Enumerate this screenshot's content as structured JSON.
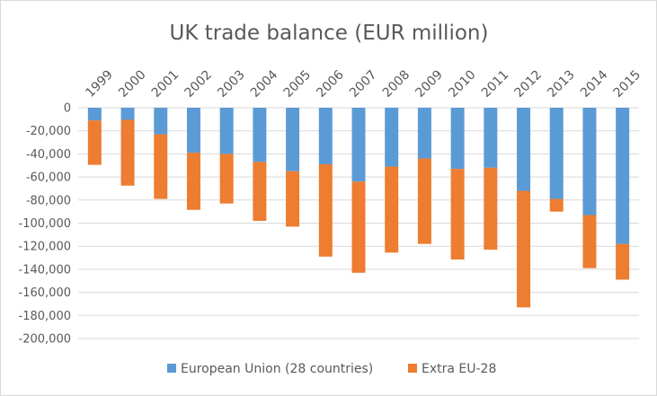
{
  "chart_data": {
    "type": "bar",
    "stacked": true,
    "title": "UK trade balance (EUR million)",
    "xlabel": "",
    "ylabel": "",
    "categories": [
      "1999",
      "2000",
      "2001",
      "2002",
      "2003",
      "2004",
      "2005",
      "2006",
      "2007",
      "2008",
      "2009",
      "2010",
      "2011",
      "2012",
      "2013",
      "2014",
      "2015"
    ],
    "series": [
      {
        "name": "European Union (28 countries)",
        "color": "#5b9bd5",
        "values": [
          -11000,
          -10500,
          -23000,
          -39000,
          -40000,
          -47000,
          -55000,
          -49000,
          -64000,
          -51000,
          -44000,
          -53000,
          -52000,
          -72000,
          -79000,
          -93000,
          -118000
        ]
      },
      {
        "name": "Extra EU-28",
        "color": "#ed7d31",
        "values": [
          -38500,
          -57000,
          -56000,
          -49500,
          -43000,
          -51000,
          -48000,
          -80000,
          -79000,
          -74500,
          -74000,
          -78500,
          -71000,
          -101000,
          -11000,
          -46000,
          -31000
        ]
      }
    ],
    "ylim": [
      -200000,
      0
    ],
    "yticks": [
      "0",
      "-20,000",
      "-40,000",
      "-60,000",
      "-80,000",
      "-100,000",
      "-120,000",
      "-140,000",
      "-160,000",
      "-180,000",
      "-200,000"
    ],
    "ytick_values": [
      0,
      -20000,
      -40000,
      -60000,
      -80000,
      -100000,
      -120000,
      -140000,
      -160000,
      -180000,
      -200000
    ],
    "grid": true,
    "legend": "bottom"
  }
}
